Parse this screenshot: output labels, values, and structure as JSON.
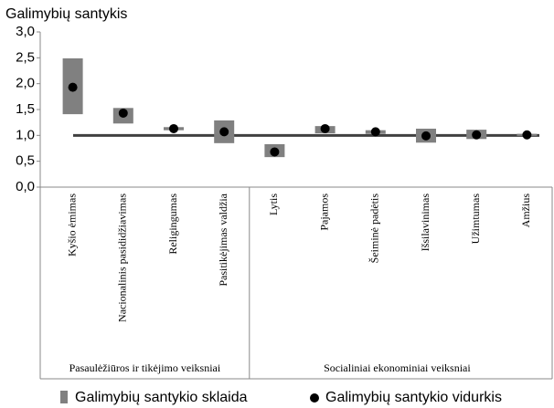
{
  "chart_data": {
    "type": "range",
    "title": "Galimybių santykis",
    "categories": [
      "Kyšio ėmimas",
      "Nacionalinis pasididžiavimas",
      "Religingumas",
      "Pasitikėjimas valdžia",
      "Lytis",
      "Pajamos",
      "Šeiminė padėtis",
      "Išsilavinimas",
      "Užimtumas",
      "Amžius"
    ],
    "groups": [
      {
        "name": "Pasaulėžiūros ir tikėjimo veiksniai",
        "count": 4
      },
      {
        "name": "Socialiniai ekonominiai veiksniai",
        "count": 6
      }
    ],
    "series": [
      {
        "name": "Galimybių santykio sklaida",
        "color": "#808080",
        "low": [
          1.41,
          1.23,
          1.1,
          0.85,
          0.58,
          1.04,
          1.03,
          0.86,
          0.93,
          0.99
        ],
        "high": [
          2.49,
          1.53,
          1.16,
          1.29,
          0.83,
          1.18,
          1.1,
          1.13,
          1.11,
          1.03
        ]
      },
      {
        "name": "Galimybių santykio vidurkis",
        "color": "#000000",
        "values": [
          1.93,
          1.43,
          1.13,
          1.07,
          0.68,
          1.13,
          1.07,
          0.99,
          1.01,
          1.01
        ]
      }
    ],
    "reference": 1,
    "reference_color": "#404040",
    "ylim": [
      0,
      3
    ],
    "yticks": [
      {
        "value": 0,
        "label": "0,0"
      },
      {
        "value": 0.5,
        "label": "0,5"
      },
      {
        "value": 1,
        "label": "1,0"
      },
      {
        "value": 1.5,
        "label": "1,5"
      },
      {
        "value": 2,
        "label": "2,0"
      },
      {
        "value": 2.5,
        "label": "2,5"
      },
      {
        "value": 3,
        "label": "3,0"
      }
    ]
  }
}
